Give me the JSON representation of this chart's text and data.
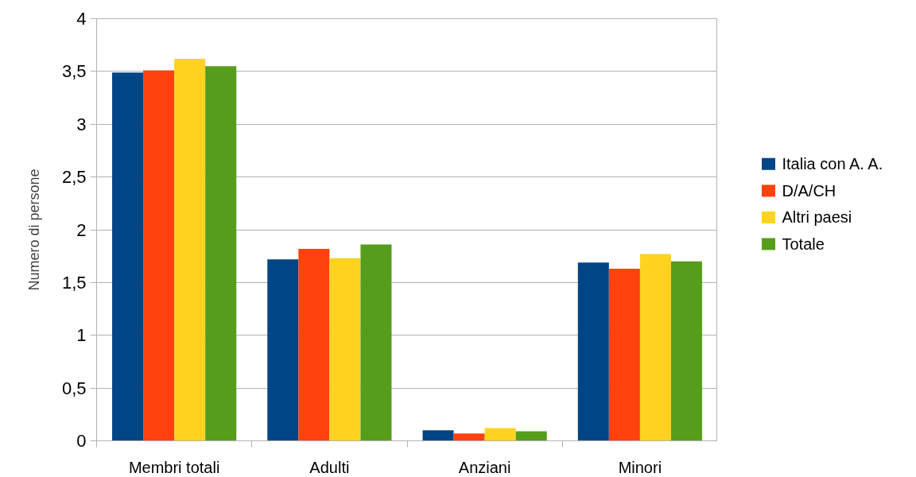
{
  "chart_data": {
    "type": "bar",
    "categories": [
      "Membri totali",
      "Adulti",
      "Anziani",
      "Minori"
    ],
    "series": [
      {
        "name": "Italia con A. A.",
        "color": "#004586",
        "values": [
          3.49,
          1.72,
          0.1,
          1.69
        ]
      },
      {
        "name": "D/A/CH",
        "color": "#ff420e",
        "values": [
          3.51,
          1.82,
          0.07,
          1.63
        ]
      },
      {
        "name": "Altri paesi",
        "color": "#ffd320",
        "values": [
          3.62,
          1.73,
          0.12,
          1.77
        ]
      },
      {
        "name": "Totale",
        "color": "#579d1c",
        "values": [
          3.55,
          1.86,
          0.09,
          1.7
        ]
      }
    ],
    "ylabel": "Numero di persone",
    "ylim": [
      0,
      4
    ],
    "yticks": [
      0,
      {
        "value": 0.5,
        "label": "0,5"
      },
      1,
      {
        "value": 1.5,
        "label": "1,5"
      },
      2,
      {
        "value": 2.5,
        "label": "2,5"
      },
      3,
      {
        "value": 3.5,
        "label": "3,5"
      },
      4
    ],
    "grid": "y",
    "legend": "right"
  }
}
